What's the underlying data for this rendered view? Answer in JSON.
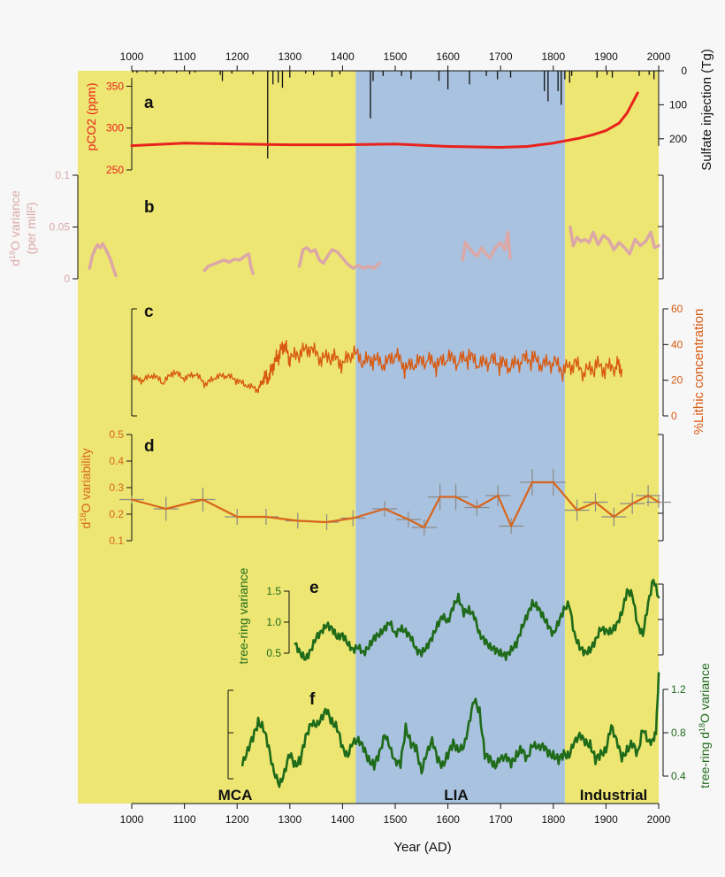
{
  "colors": {
    "mca": "#ede672",
    "lia": "#a9c2df",
    "industrial": "#ede672",
    "co2": "#e8221c",
    "d18o_var": "#dba7a7",
    "lithic": "#d85a12",
    "variability": "#d8651c",
    "tree": "#1f6b1a",
    "errorbar": "#8a8a8a"
  },
  "eras": [
    {
      "label": "MCA",
      "from": 900,
      "to": 1425
    },
    {
      "label": "LIA",
      "from": 1425,
      "to": 1822
    },
    {
      "label": "Industrial",
      "from": 1822,
      "to": 2000
    }
  ],
  "axes": {
    "year_ticks": [
      1000,
      1100,
      1200,
      1300,
      1400,
      1500,
      1600,
      1700,
      1800,
      1900,
      2000
    ],
    "xlabel": "Year (AD)",
    "a_left_label": "pCO2 (ppm)",
    "a_right_label": "Sulfate injection (Tg)",
    "b_left_label_l1": "d18O variance",
    "b_left_label_l2": "(per mill²)",
    "c_right_label": "%Lithic concentration",
    "d_left_label": "d18O variability",
    "e_left_label": "tree-ring variance",
    "f_right_label": "tree-ring d18O variance"
  },
  "panel_letters": [
    "a",
    "b",
    "c",
    "d",
    "e",
    "f"
  ],
  "chart_data": [
    {
      "panel": "a",
      "type": "line",
      "ylabel": "pCO2 (ppm)",
      "ylim": [
        250,
        360
      ],
      "yticks": [
        250,
        300,
        350
      ],
      "x": [
        1000,
        1100,
        1200,
        1300,
        1400,
        1500,
        1600,
        1700,
        1750,
        1800,
        1825,
        1850,
        1875,
        1900,
        1925,
        1940,
        1950,
        1960
      ],
      "y": [
        279,
        282,
        281,
        280,
        280,
        281,
        278,
        277,
        278,
        282,
        285,
        288,
        292,
        297,
        306,
        318,
        330,
        342
      ]
    },
    {
      "panel": "a",
      "type": "bar",
      "ylabel": "Sulfate injection (Tg)",
      "ylim": [
        0,
        250
      ],
      "yticks": [
        0,
        100,
        200
      ],
      "x": [
        1002,
        1010,
        1028,
        1045,
        1060,
        1085,
        1110,
        1120,
        1168,
        1172,
        1190,
        1230,
        1258,
        1268,
        1278,
        1286,
        1300,
        1330,
        1345,
        1380,
        1395,
        1453,
        1458,
        1477,
        1512,
        1530,
        1583,
        1600,
        1641,
        1673,
        1694,
        1719,
        1783,
        1790,
        1809,
        1815,
        1822,
        1831,
        1835,
        1883,
        1902,
        1912,
        1963,
        1982,
        1991
      ],
      "values": [
        5,
        6,
        4,
        10,
        8,
        6,
        10,
        5,
        12,
        30,
        8,
        10,
        258,
        40,
        35,
        50,
        20,
        8,
        12,
        18,
        10,
        140,
        30,
        15,
        15,
        25,
        30,
        55,
        40,
        15,
        25,
        20,
        60,
        90,
        60,
        100,
        25,
        35,
        15,
        20,
        12,
        20,
        15,
        12,
        25
      ]
    },
    {
      "panel": "b",
      "type": "line",
      "ylabel": "d18O variance (per mill²)",
      "ylim": [
        0,
        0.1
      ],
      "yticks": [
        0,
        0.05,
        0.1
      ],
      "segments": [
        {
          "x": [
            920,
            925,
            930,
            935,
            940,
            945,
            950,
            955,
            960,
            965,
            970
          ],
          "y": [
            0.01,
            0.022,
            0.028,
            0.033,
            0.03,
            0.034,
            0.029,
            0.024,
            0.018,
            0.01,
            0.003
          ]
        },
        {
          "x": [
            1138,
            1145,
            1155,
            1165,
            1175,
            1185,
            1195,
            1205,
            1215,
            1222,
            1226,
            1230
          ],
          "y": [
            0.008,
            0.012,
            0.014,
            0.016,
            0.018,
            0.016,
            0.019,
            0.018,
            0.022,
            0.024,
            0.012,
            0.005
          ]
        },
        {
          "x": [
            1318,
            1325,
            1332,
            1340,
            1348,
            1356,
            1364,
            1372,
            1380,
            1390,
            1400,
            1410,
            1420,
            1430,
            1440,
            1450,
            1460,
            1470
          ],
          "y": [
            0.012,
            0.028,
            0.03,
            0.026,
            0.028,
            0.018,
            0.015,
            0.022,
            0.028,
            0.026,
            0.02,
            0.014,
            0.01,
            0.013,
            0.01,
            0.012,
            0.01,
            0.015
          ]
        },
        {
          "x": [
            1628,
            1633,
            1640,
            1648,
            1656,
            1664,
            1672,
            1680,
            1690,
            1700,
            1708,
            1714,
            1718
          ],
          "y": [
            0.018,
            0.035,
            0.03,
            0.025,
            0.022,
            0.03,
            0.024,
            0.02,
            0.03,
            0.035,
            0.028,
            0.045,
            0.02
          ]
        },
        {
          "x": [
            1832,
            1838,
            1845,
            1852,
            1860,
            1868,
            1876,
            1885,
            1895,
            1905,
            1915,
            1925,
            1935,
            1945,
            1955,
            1965,
            1975,
            1985,
            1992,
            2000
          ],
          "y": [
            0.05,
            0.032,
            0.04,
            0.036,
            0.038,
            0.035,
            0.045,
            0.033,
            0.042,
            0.038,
            0.028,
            0.035,
            0.03,
            0.024,
            0.038,
            0.032,
            0.036,
            0.045,
            0.03,
            0.032
          ]
        }
      ]
    },
    {
      "panel": "c",
      "type": "line",
      "ylabel": "%Lithic concentration",
      "ylim": [
        0,
        60
      ],
      "yticks": [
        0,
        20,
        40,
        60
      ],
      "x": [
        1000,
        1020,
        1040,
        1060,
        1080,
        1100,
        1120,
        1140,
        1160,
        1180,
        1200,
        1220,
        1240,
        1250,
        1260,
        1270,
        1280,
        1290,
        1300,
        1320,
        1340,
        1360,
        1380,
        1400,
        1420,
        1440,
        1460,
        1480,
        1500,
        1520,
        1540,
        1560,
        1580,
        1600,
        1620,
        1640,
        1660,
        1680,
        1700,
        1720,
        1740,
        1760,
        1780,
        1800,
        1820,
        1840,
        1860,
        1880,
        1900,
        1920,
        1930
      ],
      "y": [
        21,
        19,
        22,
        18,
        24,
        20,
        23,
        17,
        21,
        22,
        19,
        16,
        14,
        20,
        19,
        28,
        33,
        38,
        30,
        34,
        36,
        30,
        32,
        27,
        34,
        29,
        30,
        27,
        33,
        25,
        28,
        30,
        27,
        31,
        29,
        32,
        27,
        30,
        28,
        26,
        30,
        31,
        27,
        29,
        24,
        28,
        23,
        27,
        25,
        27,
        26
      ]
    },
    {
      "panel": "d",
      "type": "line",
      "ylabel": "d18O variability",
      "ylim": [
        0.1,
        0.5
      ],
      "yticks": [
        0.1,
        0.2,
        0.3,
        0.4,
        0.5
      ],
      "x": [
        1000,
        1065,
        1135,
        1200,
        1255,
        1315,
        1370,
        1420,
        1480,
        1525,
        1555,
        1585,
        1615,
        1655,
        1695,
        1720,
        1760,
        1800,
        1845,
        1880,
        1915,
        1950,
        1980,
        2000
      ],
      "y": [
        0.255,
        0.22,
        0.255,
        0.19,
        0.19,
        0.175,
        0.17,
        0.185,
        0.22,
        0.18,
        0.15,
        0.265,
        0.265,
        0.225,
        0.27,
        0.155,
        0.32,
        0.32,
        0.215,
        0.245,
        0.19,
        0.24,
        0.27,
        0.245
      ],
      "err": [
        0.015,
        0.045,
        0.045,
        0.03,
        0.03,
        0.03,
        0.03,
        0.03,
        0.03,
        0.03,
        0.03,
        0.05,
        0.05,
        0.03,
        0.04,
        0.03,
        0.05,
        0.05,
        0.04,
        0.035,
        0.035,
        0.04,
        0.04,
        0.02
      ]
    },
    {
      "panel": "e",
      "type": "line",
      "ylabel": "tree-ring variance",
      "ylim": [
        0.3,
        1.8
      ],
      "yticks": [
        0.5,
        1.0,
        1.5
      ],
      "x": [
        1310,
        1320,
        1330,
        1340,
        1350,
        1360,
        1370,
        1380,
        1390,
        1400,
        1410,
        1420,
        1430,
        1440,
        1450,
        1460,
        1470,
        1480,
        1490,
        1500,
        1510,
        1520,
        1530,
        1540,
        1550,
        1560,
        1570,
        1580,
        1590,
        1600,
        1610,
        1620,
        1630,
        1640,
        1650,
        1660,
        1670,
        1680,
        1690,
        1700,
        1710,
        1720,
        1730,
        1740,
        1750,
        1760,
        1770,
        1780,
        1790,
        1800,
        1810,
        1820,
        1830,
        1840,
        1850,
        1860,
        1870,
        1880,
        1890,
        1900,
        1910,
        1920,
        1930,
        1940,
        1950,
        1960,
        1970,
        1980,
        1990,
        2000
      ],
      "y": [
        0.65,
        0.5,
        0.4,
        0.55,
        0.75,
        0.85,
        0.95,
        0.9,
        0.75,
        0.8,
        0.65,
        0.55,
        0.6,
        0.5,
        0.6,
        0.75,
        0.8,
        0.9,
        1.0,
        0.8,
        0.9,
        0.85,
        0.75,
        0.55,
        0.5,
        0.6,
        0.75,
        0.95,
        1.1,
        1.0,
        1.25,
        1.4,
        1.15,
        1.2,
        1.1,
        0.8,
        0.7,
        0.6,
        0.55,
        0.5,
        0.45,
        0.55,
        0.65,
        0.9,
        1.1,
        1.3,
        1.25,
        1.1,
        0.95,
        0.8,
        1.0,
        1.2,
        1.3,
        0.8,
        0.6,
        0.5,
        0.55,
        0.7,
        0.9,
        0.85,
        0.85,
        0.95,
        1.15,
        1.5,
        1.45,
        0.95,
        0.8,
        1.3,
        1.7,
        1.4
      ]
    },
    {
      "panel": "f",
      "type": "line",
      "ylabel": "tree-ring d18O variance",
      "ylim": [
        0.3,
        1.3
      ],
      "yticks": [
        0.4,
        0.8,
        1.2
      ],
      "x": [
        1210,
        1220,
        1230,
        1240,
        1250,
        1260,
        1270,
        1280,
        1290,
        1300,
        1310,
        1320,
        1330,
        1340,
        1350,
        1360,
        1370,
        1380,
        1390,
        1400,
        1410,
        1420,
        1430,
        1440,
        1450,
        1460,
        1470,
        1480,
        1490,
        1500,
        1510,
        1520,
        1530,
        1540,
        1550,
        1560,
        1570,
        1580,
        1590,
        1600,
        1610,
        1620,
        1630,
        1640,
        1650,
        1660,
        1670,
        1680,
        1690,
        1700,
        1710,
        1720,
        1730,
        1740,
        1750,
        1760,
        1770,
        1780,
        1790,
        1800,
        1810,
        1820,
        1830,
        1840,
        1850,
        1860,
        1870,
        1880,
        1890,
        1900,
        1910,
        1920,
        1930,
        1940,
        1950,
        1960,
        1970,
        1980,
        1990,
        1995,
        2000
      ],
      "y": [
        0.5,
        0.65,
        0.75,
        0.9,
        0.85,
        0.65,
        0.45,
        0.3,
        0.45,
        0.6,
        0.5,
        0.55,
        0.75,
        0.9,
        0.85,
        0.95,
        1.0,
        0.9,
        0.85,
        0.65,
        0.6,
        0.7,
        0.75,
        0.65,
        0.55,
        0.5,
        0.6,
        0.8,
        0.65,
        0.55,
        0.5,
        0.85,
        0.7,
        0.65,
        0.45,
        0.6,
        0.75,
        0.55,
        0.5,
        0.6,
        0.7,
        0.65,
        0.65,
        0.9,
        1.1,
        1.0,
        0.6,
        0.55,
        0.5,
        0.55,
        0.6,
        0.5,
        0.6,
        0.65,
        0.55,
        0.7,
        0.65,
        0.7,
        0.6,
        0.6,
        0.55,
        0.6,
        0.6,
        0.7,
        0.8,
        0.7,
        0.7,
        0.55,
        0.6,
        0.65,
        0.85,
        0.75,
        0.55,
        0.65,
        0.7,
        0.6,
        0.85,
        0.7,
        0.75,
        0.8,
        1.35
      ]
    }
  ]
}
